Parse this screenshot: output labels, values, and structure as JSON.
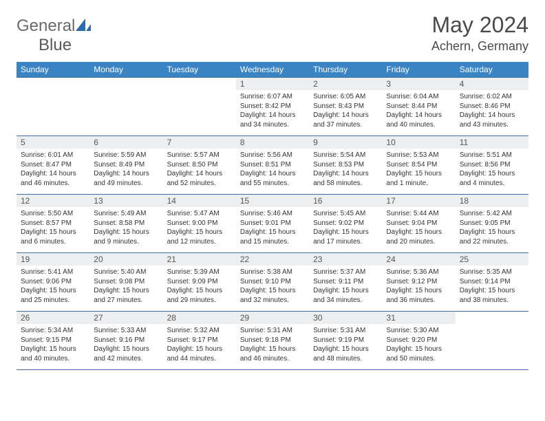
{
  "logo": {
    "part1": "General",
    "part2": "Blue"
  },
  "title": "May 2024",
  "location": "Achern, Germany",
  "colors": {
    "header_bg": "#3b84c4",
    "header_text": "#ffffff",
    "border": "#3b6fa0",
    "daynum_bg": "#eceef0",
    "logo_accent": "#2a6bb0"
  },
  "day_headers": [
    "Sunday",
    "Monday",
    "Tuesday",
    "Wednesday",
    "Thursday",
    "Friday",
    "Saturday"
  ],
  "weeks": [
    [
      {
        "n": "",
        "sr": "",
        "ss": "",
        "dl": ""
      },
      {
        "n": "",
        "sr": "",
        "ss": "",
        "dl": ""
      },
      {
        "n": "",
        "sr": "",
        "ss": "",
        "dl": ""
      },
      {
        "n": "1",
        "sr": "Sunrise: 6:07 AM",
        "ss": "Sunset: 8:42 PM",
        "dl": "Daylight: 14 hours and 34 minutes."
      },
      {
        "n": "2",
        "sr": "Sunrise: 6:05 AM",
        "ss": "Sunset: 8:43 PM",
        "dl": "Daylight: 14 hours and 37 minutes."
      },
      {
        "n": "3",
        "sr": "Sunrise: 6:04 AM",
        "ss": "Sunset: 8:44 PM",
        "dl": "Daylight: 14 hours and 40 minutes."
      },
      {
        "n": "4",
        "sr": "Sunrise: 6:02 AM",
        "ss": "Sunset: 8:46 PM",
        "dl": "Daylight: 14 hours and 43 minutes."
      }
    ],
    [
      {
        "n": "5",
        "sr": "Sunrise: 6:01 AM",
        "ss": "Sunset: 8:47 PM",
        "dl": "Daylight: 14 hours and 46 minutes."
      },
      {
        "n": "6",
        "sr": "Sunrise: 5:59 AM",
        "ss": "Sunset: 8:49 PM",
        "dl": "Daylight: 14 hours and 49 minutes."
      },
      {
        "n": "7",
        "sr": "Sunrise: 5:57 AM",
        "ss": "Sunset: 8:50 PM",
        "dl": "Daylight: 14 hours and 52 minutes."
      },
      {
        "n": "8",
        "sr": "Sunrise: 5:56 AM",
        "ss": "Sunset: 8:51 PM",
        "dl": "Daylight: 14 hours and 55 minutes."
      },
      {
        "n": "9",
        "sr": "Sunrise: 5:54 AM",
        "ss": "Sunset: 8:53 PM",
        "dl": "Daylight: 14 hours and 58 minutes."
      },
      {
        "n": "10",
        "sr": "Sunrise: 5:53 AM",
        "ss": "Sunset: 8:54 PM",
        "dl": "Daylight: 15 hours and 1 minute."
      },
      {
        "n": "11",
        "sr": "Sunrise: 5:51 AM",
        "ss": "Sunset: 8:56 PM",
        "dl": "Daylight: 15 hours and 4 minutes."
      }
    ],
    [
      {
        "n": "12",
        "sr": "Sunrise: 5:50 AM",
        "ss": "Sunset: 8:57 PM",
        "dl": "Daylight: 15 hours and 6 minutes."
      },
      {
        "n": "13",
        "sr": "Sunrise: 5:49 AM",
        "ss": "Sunset: 8:58 PM",
        "dl": "Daylight: 15 hours and 9 minutes."
      },
      {
        "n": "14",
        "sr": "Sunrise: 5:47 AM",
        "ss": "Sunset: 9:00 PM",
        "dl": "Daylight: 15 hours and 12 minutes."
      },
      {
        "n": "15",
        "sr": "Sunrise: 5:46 AM",
        "ss": "Sunset: 9:01 PM",
        "dl": "Daylight: 15 hours and 15 minutes."
      },
      {
        "n": "16",
        "sr": "Sunrise: 5:45 AM",
        "ss": "Sunset: 9:02 PM",
        "dl": "Daylight: 15 hours and 17 minutes."
      },
      {
        "n": "17",
        "sr": "Sunrise: 5:44 AM",
        "ss": "Sunset: 9:04 PM",
        "dl": "Daylight: 15 hours and 20 minutes."
      },
      {
        "n": "18",
        "sr": "Sunrise: 5:42 AM",
        "ss": "Sunset: 9:05 PM",
        "dl": "Daylight: 15 hours and 22 minutes."
      }
    ],
    [
      {
        "n": "19",
        "sr": "Sunrise: 5:41 AM",
        "ss": "Sunset: 9:06 PM",
        "dl": "Daylight: 15 hours and 25 minutes."
      },
      {
        "n": "20",
        "sr": "Sunrise: 5:40 AM",
        "ss": "Sunset: 9:08 PM",
        "dl": "Daylight: 15 hours and 27 minutes."
      },
      {
        "n": "21",
        "sr": "Sunrise: 5:39 AM",
        "ss": "Sunset: 9:09 PM",
        "dl": "Daylight: 15 hours and 29 minutes."
      },
      {
        "n": "22",
        "sr": "Sunrise: 5:38 AM",
        "ss": "Sunset: 9:10 PM",
        "dl": "Daylight: 15 hours and 32 minutes."
      },
      {
        "n": "23",
        "sr": "Sunrise: 5:37 AM",
        "ss": "Sunset: 9:11 PM",
        "dl": "Daylight: 15 hours and 34 minutes."
      },
      {
        "n": "24",
        "sr": "Sunrise: 5:36 AM",
        "ss": "Sunset: 9:12 PM",
        "dl": "Daylight: 15 hours and 36 minutes."
      },
      {
        "n": "25",
        "sr": "Sunrise: 5:35 AM",
        "ss": "Sunset: 9:14 PM",
        "dl": "Daylight: 15 hours and 38 minutes."
      }
    ],
    [
      {
        "n": "26",
        "sr": "Sunrise: 5:34 AM",
        "ss": "Sunset: 9:15 PM",
        "dl": "Daylight: 15 hours and 40 minutes."
      },
      {
        "n": "27",
        "sr": "Sunrise: 5:33 AM",
        "ss": "Sunset: 9:16 PM",
        "dl": "Daylight: 15 hours and 42 minutes."
      },
      {
        "n": "28",
        "sr": "Sunrise: 5:32 AM",
        "ss": "Sunset: 9:17 PM",
        "dl": "Daylight: 15 hours and 44 minutes."
      },
      {
        "n": "29",
        "sr": "Sunrise: 5:31 AM",
        "ss": "Sunset: 9:18 PM",
        "dl": "Daylight: 15 hours and 46 minutes."
      },
      {
        "n": "30",
        "sr": "Sunrise: 5:31 AM",
        "ss": "Sunset: 9:19 PM",
        "dl": "Daylight: 15 hours and 48 minutes."
      },
      {
        "n": "31",
        "sr": "Sunrise: 5:30 AM",
        "ss": "Sunset: 9:20 PM",
        "dl": "Daylight: 15 hours and 50 minutes."
      },
      {
        "n": "",
        "sr": "",
        "ss": "",
        "dl": ""
      }
    ]
  ]
}
